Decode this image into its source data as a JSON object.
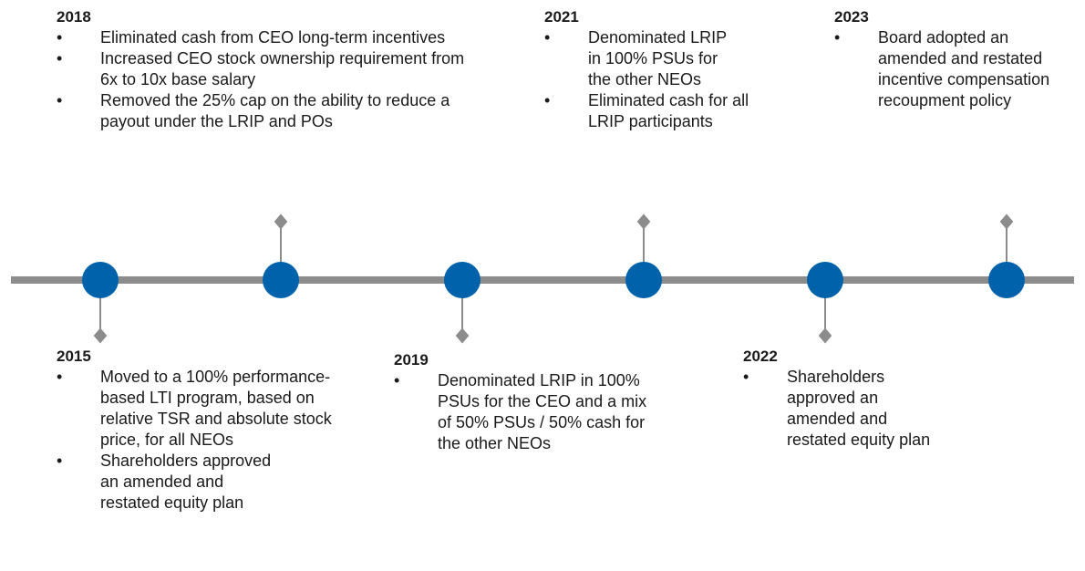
{
  "events": [
    {
      "year": "2018",
      "bullets": [
        "Eliminated cash from CEO long-term incentives",
        "Increased CEO stock ownership requirement from 6x to 10x base salary",
        "Removed the 25% cap on the ability to reduce a payout under the LRIP and POs"
      ]
    },
    {
      "year": "2015",
      "bullets": [
        "Moved to a 100% performance-based LTI program, based on relative TSR and absolute stock price, for all NEOs",
        "Shareholders approved an amended and restated equity plan"
      ]
    },
    {
      "year": "2019",
      "bullets": [
        "Denominated LRIP in 100% PSUs for the CEO and a mix of 50% PSUs / 50% cash for the other NEOs"
      ]
    },
    {
      "year": "2021",
      "bullets": [
        "Denominated LRIP in 100% PSUs for the other NEOs",
        "Eliminated cash for all LRIP participants"
      ]
    },
    {
      "year": "2022",
      "bullets": [
        "Shareholders approved an amended and restated equity plan"
      ]
    },
    {
      "year": "2023",
      "bullets": [
        "Board adopted an amended and restated incentive compensation recoupment policy"
      ]
    }
  ]
}
